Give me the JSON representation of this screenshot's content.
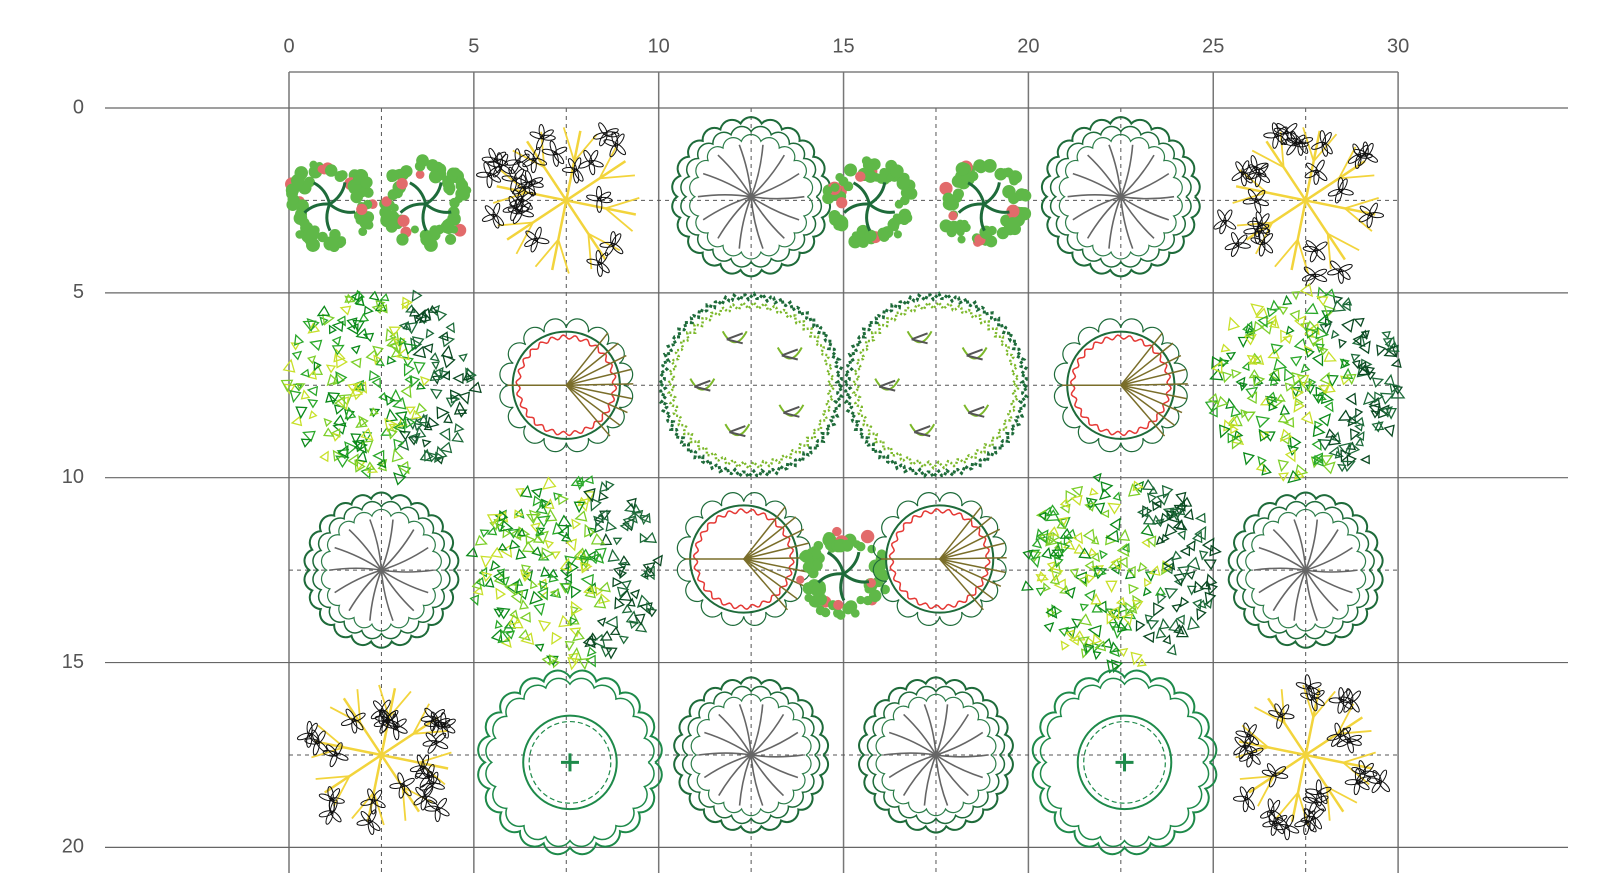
{
  "ruler": {
    "x_labels": [
      "0",
      "5",
      "10",
      "15",
      "20",
      "25",
      "30"
    ],
    "y_labels": [
      "0",
      "5",
      "10",
      "15",
      "20"
    ]
  }
}
